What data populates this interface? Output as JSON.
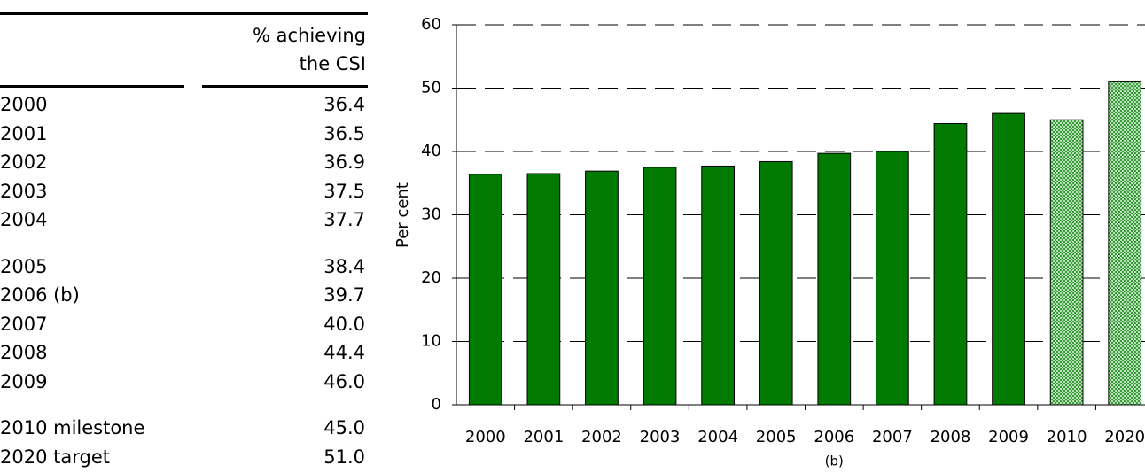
{
  "table": {
    "header": "% achieving the CSI",
    "row_groups": [
      [
        "2000",
        "2001",
        "2002",
        "2003",
        "2004"
      ],
      [
        "2005",
        "2006 (b)",
        "2007",
        "2008",
        "2009"
      ],
      [
        "2010 milestone",
        "2020 target"
      ]
    ]
  },
  "chart_data": {
    "type": "bar",
    "y_label": "Per cent",
    "categories": [
      "2000",
      "2001",
      "2002",
      "2003",
      "2004",
      "2005",
      "2006",
      "2007",
      "2008",
      "2009",
      "2010",
      "2020"
    ],
    "values": [
      36.4,
      36.5,
      36.9,
      37.5,
      37.7,
      38.4,
      39.7,
      40,
      44.4,
      46,
      45,
      51
    ],
    "value_labels": [
      "36.4",
      "36.5",
      "36.9",
      "37.5",
      "37.7",
      "38.4",
      "39.7",
      "40.0",
      "44.4",
      "46.0",
      "45.0",
      "51.0"
    ],
    "styles": [
      "solid",
      "solid",
      "solid",
      "solid",
      "solid",
      "solid",
      "solid",
      "solid",
      "solid",
      "solid",
      "dotted",
      "dotted"
    ],
    "color": "#007a00",
    "annotations": [
      {
        "text": "(b)",
        "x": "2006"
      }
    ],
    "ylim": [
      0,
      60
    ],
    "yticks": [
      0,
      10,
      20,
      30,
      40,
      50,
      60
    ],
    "grid": true
  }
}
